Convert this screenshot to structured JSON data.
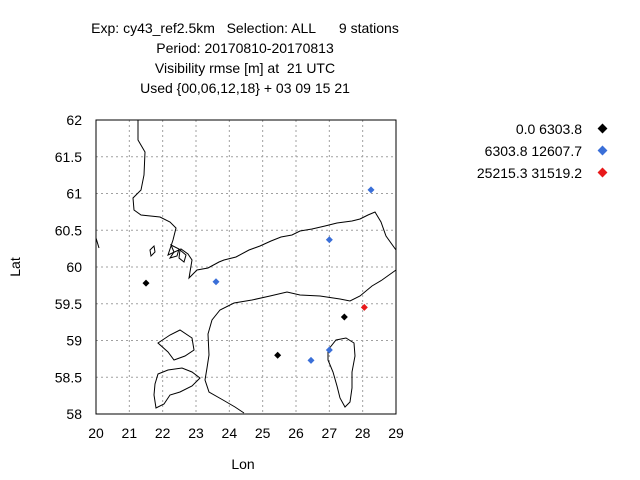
{
  "chart_data": {
    "type": "scatter",
    "title_lines": [
      "Exp: cy43_ref2.5km   Selection: ALL      9 stations",
      "Period: 20170810-20170813",
      "Visibility rmse [m] at  21 UTC",
      "Used {00,06,12,18} + 03 09 15 21"
    ],
    "xlabel": "Lon",
    "ylabel": "Lat",
    "xlim": [
      20,
      29
    ],
    "ylim": [
      58,
      62
    ],
    "x_ticks": [
      "20",
      "21",
      "22",
      "23",
      "24",
      "25",
      "26",
      "27",
      "28",
      "29"
    ],
    "y_ticks": [
      "58",
      "58.5",
      "59",
      "59.5",
      "60",
      "60.5",
      "61",
      "61.5",
      "62"
    ],
    "grid": true,
    "legend_position": "right",
    "series": [
      {
        "name": "0.0 6303.8",
        "color": "#000000",
        "points": [
          {
            "x": 21.5,
            "y": 59.78
          },
          {
            "x": 27.45,
            "y": 59.32
          },
          {
            "x": 25.45,
            "y": 58.8
          }
        ]
      },
      {
        "name": "6303.8 12607.7",
        "color": "#3a6fd8",
        "points": [
          {
            "x": 23.6,
            "y": 59.8
          },
          {
            "x": 27.0,
            "y": 60.37
          },
          {
            "x": 28.25,
            "y": 61.05
          },
          {
            "x": 26.45,
            "y": 58.73
          },
          {
            "x": 27.0,
            "y": 58.87
          }
        ]
      },
      {
        "name": "25215.3 31519.2",
        "color": "#e8191a",
        "points": [
          {
            "x": 28.05,
            "y": 59.45
          }
        ]
      }
    ]
  }
}
